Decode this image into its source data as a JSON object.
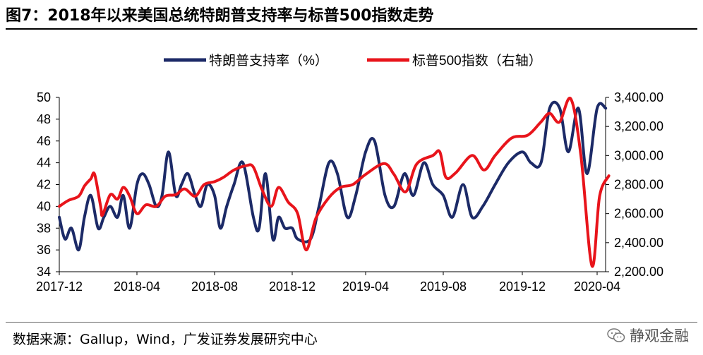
{
  "title": "图7：2018年以来美国总统特朗普支持率与标普500指数走势",
  "source": "数据来源：Gallup，Wind，广发证券发展研究中心",
  "watermark": "静观金融",
  "colors": {
    "approval": "#1c2a67",
    "sp500": "#e8141b"
  },
  "chart_data": {
    "type": "line",
    "x_tick_labels": [
      "2017-12",
      "2018-04",
      "2018-08",
      "2018-12",
      "2019-04",
      "2019-08",
      "2019-12",
      "2020-04"
    ],
    "legend_position": "top",
    "grid": false,
    "left_axis": {
      "ylim": [
        34,
        50
      ],
      "ticks": [
        "34",
        "36",
        "38",
        "40",
        "42",
        "44",
        "46",
        "48",
        "50"
      ]
    },
    "right_axis": {
      "ylim": [
        2200,
        3400
      ],
      "ticks": [
        "2,200.00",
        "2,400.00",
        "2,600.00",
        "2,800.00",
        "3,000.00",
        "3,200.00",
        "3,400.00"
      ]
    },
    "series": [
      {
        "name": "特朗普支持率（%）",
        "axis": "left",
        "x": [
          "2017-12-01",
          "2017-12-10",
          "2017-12-20",
          "2018-01-01",
          "2018-01-10",
          "2018-01-20",
          "2018-02-01",
          "2018-02-10",
          "2018-02-20",
          "2018-03-01",
          "2018-03-10",
          "2018-03-20",
          "2018-04-01",
          "2018-04-10",
          "2018-04-20",
          "2018-05-01",
          "2018-05-10",
          "2018-05-20",
          "2018-06-01",
          "2018-06-10",
          "2018-06-20",
          "2018-07-01",
          "2018-07-10",
          "2018-07-20",
          "2018-08-01",
          "2018-08-10",
          "2018-08-20",
          "2018-09-01",
          "2018-09-15",
          "2018-10-01",
          "2018-10-10",
          "2018-10-20",
          "2018-11-01",
          "2018-11-10",
          "2018-11-20",
          "2018-12-01",
          "2018-12-10",
          "2019-01-01",
          "2019-01-15",
          "2019-02-01",
          "2019-02-15",
          "2019-03-01",
          "2019-03-15",
          "2019-04-01",
          "2019-04-15",
          "2019-05-01",
          "2019-05-15",
          "2019-06-01",
          "2019-06-15",
          "2019-07-01",
          "2019-07-15",
          "2019-08-01",
          "2019-08-15",
          "2019-09-01",
          "2019-09-15",
          "2019-10-01",
          "2019-10-20",
          "2019-11-10",
          "2019-12-01",
          "2019-12-15",
          "2020-01-01",
          "2020-01-15",
          "2020-02-01",
          "2020-02-15",
          "2020-03-01",
          "2020-03-15",
          "2020-04-01",
          "2020-04-15"
        ],
        "values": [
          39,
          37,
          38,
          36,
          39,
          41,
          38,
          39,
          40,
          39,
          41,
          38,
          42,
          43,
          42,
          40,
          41,
          45,
          41,
          42,
          43,
          41,
          40,
          42,
          41,
          38,
          40,
          42,
          44,
          39,
          38,
          43,
          37,
          39,
          38,
          38,
          37,
          37,
          40,
          44,
          43,
          39,
          41,
          45,
          46,
          41,
          40,
          43,
          41,
          44,
          42,
          41,
          39,
          42,
          39,
          40,
          42,
          44,
          45,
          44,
          44,
          49,
          49,
          45,
          49,
          43,
          49,
          49
        ]
      },
      {
        "name": "标普500指数（右轴）",
        "axis": "right",
        "x": [
          "2017-12-01",
          "2017-12-15",
          "2018-01-01",
          "2018-01-10",
          "2018-01-20",
          "2018-01-26",
          "2018-02-05",
          "2018-02-08",
          "2018-02-20",
          "2018-03-01",
          "2018-03-10",
          "2018-03-20",
          "2018-04-01",
          "2018-04-15",
          "2018-05-01",
          "2018-05-15",
          "2018-06-01",
          "2018-06-15",
          "2018-07-01",
          "2018-07-15",
          "2018-08-01",
          "2018-08-15",
          "2018-09-01",
          "2018-09-20",
          "2018-10-01",
          "2018-10-15",
          "2018-10-29",
          "2018-11-10",
          "2018-11-25",
          "2018-12-10",
          "2018-12-24",
          "2019-01-10",
          "2019-02-01",
          "2019-02-20",
          "2019-03-10",
          "2019-04-01",
          "2019-04-30",
          "2019-05-15",
          "2019-06-03",
          "2019-06-20",
          "2019-07-15",
          "2019-07-26",
          "2019-08-05",
          "2019-08-20",
          "2019-09-15",
          "2019-10-03",
          "2019-10-20",
          "2019-11-15",
          "2019-12-10",
          "2019-12-31",
          "2020-01-15",
          "2020-01-31",
          "2020-02-19",
          "2020-03-05",
          "2020-03-23",
          "2020-04-05",
          "2020-04-20"
        ],
        "values": [
          2650,
          2690,
          2720,
          2790,
          2840,
          2870,
          2650,
          2590,
          2730,
          2700,
          2780,
          2720,
          2600,
          2660,
          2650,
          2720,
          2730,
          2770,
          2720,
          2800,
          2820,
          2850,
          2900,
          2930,
          2920,
          2760,
          2650,
          2780,
          2680,
          2600,
          2350,
          2570,
          2710,
          2780,
          2800,
          2870,
          2945,
          2870,
          2750,
          2940,
          3000,
          3025,
          2850,
          2880,
          3000,
          2900,
          3000,
          3120,
          3140,
          3230,
          3290,
          3230,
          3390,
          3000,
          2240,
          2720,
          2860
        ]
      }
    ]
  }
}
